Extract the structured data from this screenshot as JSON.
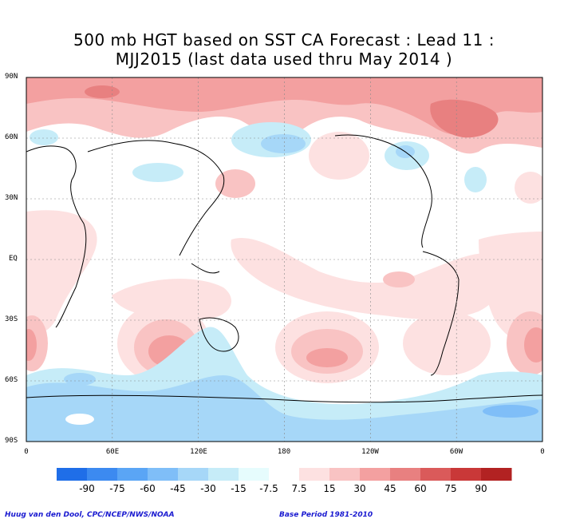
{
  "title_line1": "500 mb HGT based on SST CA Forecast : Lead 11 :",
  "title_line2": "MJJ2015 (last data used thru May 2014 )",
  "lat_labels": [
    "90N",
    "60N",
    "30N",
    "EQ",
    "30S",
    "60S",
    "90S"
  ],
  "lon_labels": [
    "0",
    "60E",
    "120E",
    "180",
    "120W",
    "60W",
    "0"
  ],
  "colorbar": {
    "labels": [
      "-90",
      "-75",
      "-60",
      "-45",
      "-30",
      "-15",
      "-7.5",
      "7.5",
      "15",
      "30",
      "45",
      "60",
      "75",
      "90"
    ],
    "colors": [
      "#1f6ee8",
      "#3c8af0",
      "#5aa5f5",
      "#7fbef8",
      "#a6d7f8",
      "#c6ecf8",
      "#e6fcfd",
      "#ffffff",
      "#fde1e1",
      "#f9c3c3",
      "#f3a0a0",
      "#e88080",
      "#da5a5a",
      "#c93838",
      "#b22222"
    ]
  },
  "footer_left": "Huug van den Dool, CPC/NCEP/NWS/NOAA",
  "footer_right": "Base Period 1981-2010"
}
